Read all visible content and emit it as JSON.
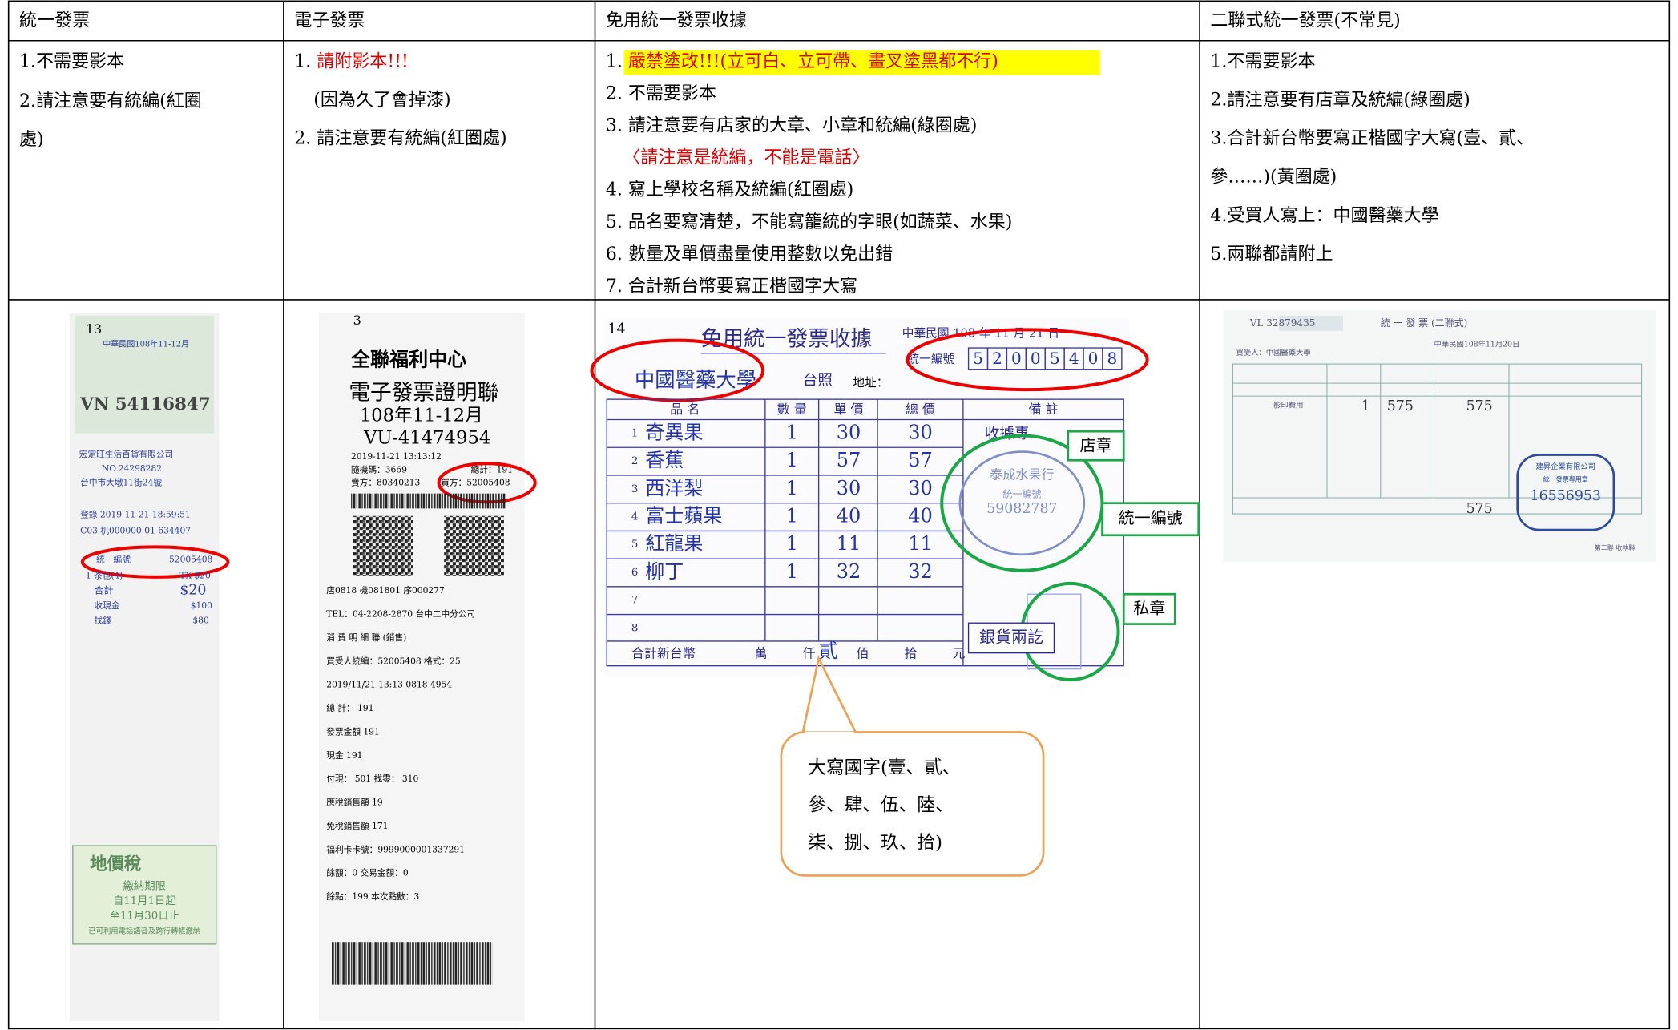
{
  "table": {
    "headers": [
      "統一發票",
      "電子發票",
      "免用統一發票收據",
      "二聯式統一發票(不常見)"
    ],
    "notes": [
      [
        "1.不需要影本",
        "2.請注意要有統編(紅圈",
        "處)"
      ],
      [
        [
          "1. ",
          "請附影本!!!"
        ],
        "(因為久了會掉漆)",
        "2. 請注意要有統編(紅圈處)"
      ],
      [
        [
          "1. ",
          "嚴禁塗改!!!(立可白、立可帶、畫叉塗黑都不行)"
        ],
        "2. 不需要影本",
        "3. 請注意要有店家的大章、小章和統編(綠圈處)",
        "〈請注意是統編，不能是電話〉",
        "4. 寫上學校名稱及統編(紅圈處)",
        "5. 品名要寫清楚，不能寫籠統的字眼(如蔬菜、水果)",
        "6. 數量及單價盡量使用整數以免出錯",
        "7. 合計新台幣要寫正楷國字大寫"
      ],
      [
        "1.不需要影本",
        "2.請注意要有店章及統編(綠圈處)",
        "3.合計新台幣要寫正楷國字大寫(壹、貳、",
        "參……)(黃圈處)",
        "4.受買人寫上：中國醫藥大學",
        "5.兩聯都請附上"
      ]
    ]
  },
  "receipt_1": {
    "number": "13",
    "period": "中華民國108年11-12月",
    "invoice_no": "VN 54116847",
    "seller": "宏定旺生活百貨有限公司",
    "seller_no": "NO.24298282",
    "address": "台中市大墩11街24號",
    "date": "登錄 2019-11-21 18:59:51",
    "code": "C03 机000000-01 634407",
    "tax_id_label": "統一編號",
    "tax_id": "52005408",
    "item": "1 茶包(4)",
    "item_price": "TX $20",
    "total_label": "合計",
    "total": "$20",
    "cash_label": "收現金",
    "cash": "$100",
    "change_label": "找錢",
    "change": "$80",
    "tax_title": "地價稅",
    "tax_lines": [
      "繳納期限",
      "自11月1日起",
      "至11月30日止",
      "已可利用電話語音及跨行轉帳繳納"
    ]
  },
  "receipt_2": {
    "number": "3",
    "store": "全聯福利中心",
    "title": "電子發票證明聯",
    "period": "108年11-12月",
    "invoice_no": "VU-41474954",
    "datetime": "2019-11-21 13:13:12",
    "random": "隨機碼：3669",
    "total": "總計：191",
    "seller": "賣方：80340213",
    "buyer": "買方：52005408",
    "lines": [
      "店0818 機081801 序000277",
      "TEL：04-2208-2870 台中二中分公司",
      "消 費 明 細 聯 (銷售)",
      "買受人統編：52005408 格式：25",
      "2019/11/21 13:13 0818 4954",
      "總 計： 191",
      "發票金額 191",
      "現金 191",
      "付現： 501 找零： 310",
      "應稅銷售額 19",
      "免稅銷售額 171",
      "福利卡卡號：9999000001337291",
      "餘額：0 交易金額：0",
      "餘點：199 本次點數：3"
    ]
  },
  "receipt_3": {
    "number": "14",
    "title": "免用統一發票收據",
    "date": "中華民國 108 年 11 月 21 日",
    "tax_id_label": "統一編號",
    "tax_id_digits": [
      "5",
      "2",
      "0",
      "0",
      "5",
      "4",
      "0",
      "8"
    ],
    "buyer": "中國醫藥大學",
    "buyer_suffix": "台照",
    "address_label": "地址：",
    "columns": [
      "品 名",
      "數 量",
      "單 價",
      "總 價",
      "備 註"
    ],
    "rows": [
      [
        "1",
        "奇異果",
        "1",
        "30",
        "30"
      ],
      [
        "2",
        "香蕉",
        "1",
        "57",
        "57"
      ],
      [
        "3",
        "西洋梨",
        "1",
        "30",
        "30"
      ],
      [
        "4",
        "富士蘋果",
        "1",
        "40",
        "40"
      ],
      [
        "5",
        "紅龍果",
        "1",
        "11",
        "11"
      ],
      [
        "6",
        "柳丁",
        "1",
        "32",
        "32"
      ],
      [
        "7"
      ],
      [
        "8"
      ]
    ],
    "remark": "收據專",
    "stamp_lines": [
      "泰成水果行",
      "統一編號",
      "59082787"
    ],
    "total_label": "合計新台幣",
    "total_units": [
      "萬",
      "仟",
      "佰",
      "拾",
      "元"
    ],
    "total_amount": "貳",
    "paid": "銀貨兩訖",
    "labels": [
      "店章",
      "統一編號",
      "私章"
    ],
    "callout": [
      "大寫國字(壹、貳、",
      "參、肆、伍、陸、",
      "柒、捌、玖、拾)"
    ]
  },
  "receipt_4": {
    "invoice_no": "VL 32879435",
    "title": "統 一 發 票 (二聯式)",
    "date": "中華民國108年11月20日",
    "buyer": "買受人：中國醫藥大學",
    "item": "影印費用",
    "qty": "1",
    "price": "575",
    "amount": "575",
    "total": "575",
    "stamp_title": "統一發票專用章",
    "stamp_id": "16556953",
    "stamp_company": "建昇企業有限公司",
    "copy": "第二聯 收執聯"
  }
}
